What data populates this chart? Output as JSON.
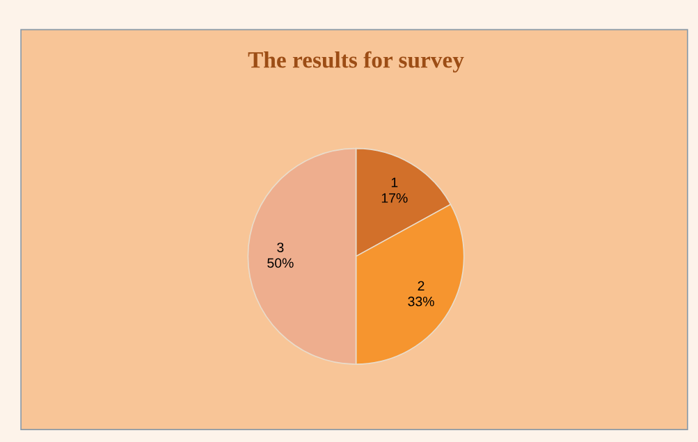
{
  "chart_data": {
    "type": "pie",
    "title": "The results for survey",
    "categories": [
      "1",
      "2",
      "3"
    ],
    "values": [
      17,
      33,
      50
    ],
    "value_labels": [
      "17%",
      "33%",
      "50%"
    ],
    "colors": [
      "#d2702a",
      "#f6952f",
      "#eeae8e"
    ],
    "legend": false
  }
}
